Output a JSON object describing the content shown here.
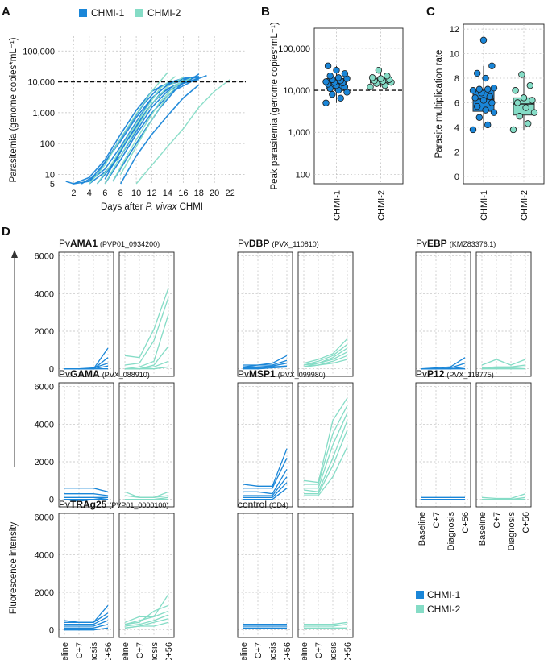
{
  "colors": {
    "chmi1": "#1a86d8",
    "chmi2": "#85dcc6",
    "dashed": "#111111"
  },
  "chart_data": [
    {
      "panel": "A",
      "type": "line",
      "panel_letter": "A",
      "xlabel_prefix": "Days after ",
      "xlabel_italic": "P. vivax",
      "xlabel_suffix": " CHMI",
      "ylabel": "Parasitemia (genome copies*mL⁻¹)",
      "xticks": [
        "2",
        "4",
        "6",
        "8",
        "10",
        "12",
        "14",
        "16",
        "18",
        "20",
        "22"
      ],
      "yticks": [
        "5",
        "10",
        "100",
        "1,000",
        "10,000",
        "100,000"
      ],
      "y_scale": "log",
      "ylim": [
        5,
        300000
      ],
      "xlim": [
        0,
        24
      ],
      "threshold": 10000,
      "legend": [
        "CHMI-1",
        "CHMI-2"
      ],
      "legend_position": "top",
      "series": [
        {
          "group": "CHMI-1",
          "x": [
            1,
            2,
            4,
            6,
            8,
            10,
            12,
            14,
            16,
            18
          ],
          "y": [
            6,
            5,
            8,
            30,
            200,
            1200,
            5000,
            9000,
            13000,
            15000
          ]
        },
        {
          "group": "CHMI-1",
          "x": [
            2,
            4,
            6,
            8,
            10,
            12,
            14,
            16,
            18
          ],
          "y": [
            5,
            6,
            15,
            80,
            500,
            3000,
            8000,
            12000,
            14000
          ]
        },
        {
          "group": "CHMI-1",
          "x": [
            3,
            5,
            7,
            9,
            11,
            13,
            15,
            17
          ],
          "y": [
            5,
            10,
            60,
            350,
            2000,
            7000,
            11000,
            12000
          ]
        },
        {
          "group": "CHMI-1",
          "x": [
            4,
            6,
            8,
            10,
            12,
            14,
            16,
            18,
            19
          ],
          "y": [
            5,
            12,
            40,
            250,
            1500,
            5000,
            9000,
            13000,
            16000
          ]
        },
        {
          "group": "CHMI-1",
          "x": [
            5,
            7,
            9,
            11,
            13,
            15,
            17,
            18
          ],
          "y": [
            5,
            20,
            150,
            900,
            4000,
            8000,
            12000,
            18000
          ]
        },
        {
          "group": "CHMI-1",
          "x": [
            6,
            8,
            10,
            12,
            14,
            16,
            18
          ],
          "y": [
            5,
            30,
            200,
            1000,
            3500,
            9000,
            12000
          ]
        },
        {
          "group": "CHMI-1",
          "x": [
            4,
            6,
            8,
            10,
            12,
            14,
            16
          ],
          "y": [
            6,
            25,
            120,
            700,
            3000,
            8000,
            11000
          ]
        },
        {
          "group": "CHMI-1",
          "x": [
            7,
            9,
            11,
            13,
            15,
            17,
            18
          ],
          "y": [
            6,
            40,
            250,
            1400,
            5500,
            10000,
            14000
          ]
        },
        {
          "group": "CHMI-1",
          "x": [
            8,
            10,
            12,
            14,
            16,
            18
          ],
          "y": [
            5,
            40,
            200,
            800,
            3000,
            8000
          ]
        },
        {
          "group": "CHMI-1",
          "x": [
            6,
            8,
            10,
            12,
            14,
            16,
            17
          ],
          "y": [
            7,
            60,
            350,
            2000,
            6000,
            10000,
            12000
          ]
        },
        {
          "group": "CHMI-2",
          "x": [
            4,
            6,
            8,
            10,
            12,
            14
          ],
          "y": [
            5,
            20,
            150,
            900,
            5000,
            20000
          ]
        },
        {
          "group": "CHMI-2",
          "x": [
            5,
            7,
            9,
            11,
            13,
            15
          ],
          "y": [
            5,
            25,
            180,
            1100,
            6000,
            15000
          ]
        },
        {
          "group": "CHMI-2",
          "x": [
            6,
            8,
            10,
            12,
            14,
            16
          ],
          "y": [
            5,
            40,
            300,
            2000,
            7000,
            14000
          ]
        },
        {
          "group": "CHMI-2",
          "x": [
            7,
            9,
            11,
            13,
            15,
            17
          ],
          "y": [
            6,
            50,
            350,
            2200,
            8000,
            13000
          ]
        },
        {
          "group": "CHMI-2",
          "x": [
            10,
            12,
            14,
            16,
            18,
            20,
            22
          ],
          "y": [
            5,
            20,
            80,
            300,
            1500,
            5000,
            12000
          ]
        },
        {
          "group": "CHMI-2",
          "x": [
            8,
            10,
            12,
            14,
            16
          ],
          "y": [
            10,
            80,
            600,
            3500,
            12000
          ]
        }
      ]
    },
    {
      "panel": "B",
      "type": "box",
      "panel_letter": "B",
      "ylabel": "Peak parasitemia (genome copies*mL⁻¹)",
      "categories": [
        "CHMI-1",
        "CHMI-2"
      ],
      "yticks": [
        "100",
        "1,000",
        "10,000",
        "100,000"
      ],
      "y_scale": "log",
      "ylim": [
        60,
        300000
      ],
      "threshold": 10000,
      "boxes": [
        {
          "min": 5000,
          "q1": 11000,
          "median": 15000,
          "q3": 19000,
          "max": 38000
        },
        {
          "min": 12000,
          "q1": 15000,
          "median": 17000,
          "q3": 19500,
          "max": 30000
        }
      ],
      "points": [
        [
          5000,
          6500,
          8000,
          9000,
          10000,
          11000,
          12000,
          13000,
          14000,
          15000,
          15500,
          16000,
          17000,
          18000,
          19000,
          20000,
          22000,
          25000,
          30000,
          38000
        ],
        [
          12000,
          13000,
          14500,
          15500,
          16500,
          17000,
          18000,
          19000,
          20000,
          22000,
          30000
        ]
      ]
    },
    {
      "panel": "C",
      "type": "box",
      "panel_letter": "C",
      "ylabel": "Parasite multiplication rate",
      "categories": [
        "CHMI-1",
        "CHMI-2"
      ],
      "yticks": [
        "0",
        "2",
        "4",
        "6",
        "8",
        "10",
        "12"
      ],
      "ylim": [
        -0.6,
        12.4
      ],
      "boxes": [
        {
          "min": 3.8,
          "q1": 5.3,
          "median": 6.3,
          "q3": 7.1,
          "max": 9.0
        },
        {
          "min": 3.8,
          "q1": 5.0,
          "median": 5.9,
          "q3": 6.4,
          "max": 8.3
        }
      ],
      "points": [
        [
          3.8,
          4.2,
          4.8,
          5.2,
          5.4,
          5.7,
          6.0,
          6.2,
          6.4,
          6.5,
          6.8,
          7.0,
          7.1,
          7.1,
          7.2,
          8.0,
          8.4,
          9.0,
          11.1
        ],
        [
          3.8,
          4.3,
          4.9,
          5.2,
          5.6,
          6.0,
          6.2,
          6.4,
          7.0,
          7.4,
          8.3
        ]
      ]
    },
    {
      "panel": "D",
      "type": "line",
      "panel_letter": "D",
      "ylabel": "Fluorescence intensity",
      "categories": [
        "Baseline",
        "C+7",
        "Diagnosis",
        "C+56"
      ],
      "yticks": [
        "0",
        "2000",
        "4000",
        "6000"
      ],
      "ylim": [
        -400,
        6200
      ],
      "legend": [
        "CHMI-1",
        "CHMI-2"
      ],
      "legend_position": "bottom-right",
      "antigens": [
        {
          "prefix": "Pv",
          "name": "AMA1",
          "id": "(PVP01_0934200)",
          "chmi1": [
            [
              0,
              0,
              0,
              1100
            ],
            [
              0,
              0,
              0,
              600
            ],
            [
              0,
              0,
              50,
              300
            ],
            [
              0,
              0,
              0,
              150
            ],
            [
              0,
              0,
              0,
              0
            ]
          ],
          "chmi2": [
            [
              700,
              600,
              2100,
              4300
            ],
            [
              200,
              300,
              1500,
              3800
            ],
            [
              0,
              100,
              400,
              2900
            ],
            [
              0,
              0,
              200,
              1200
            ],
            [
              0,
              0,
              100,
              400
            ],
            [
              0,
              0,
              0,
              100
            ]
          ]
        },
        {
          "prefix": "Pv",
          "name": "DBP",
          "id": "(PVX_110810)",
          "chmi1": [
            [
              200,
              200,
              300,
              700
            ],
            [
              100,
              200,
              200,
              450
            ],
            [
              100,
              100,
              150,
              300
            ],
            [
              50,
              50,
              100,
              150
            ],
            [
              0,
              0,
              50,
              100
            ]
          ],
          "chmi2": [
            [
              300,
              500,
              800,
              1600
            ],
            [
              200,
              400,
              700,
              1300
            ],
            [
              200,
              300,
              600,
              1100
            ],
            [
              100,
              300,
              500,
              900
            ],
            [
              100,
              200,
              400,
              700
            ],
            [
              100,
              200,
              300,
              500
            ]
          ]
        },
        {
          "prefix": "Pv",
          "name": "EBP",
          "id": "(KMZ83376.1)",
          "chmi1": [
            [
              0,
              50,
              100,
              600
            ],
            [
              0,
              0,
              50,
              300
            ],
            [
              0,
              0,
              0,
              100
            ],
            [
              0,
              0,
              0,
              0
            ]
          ],
          "chmi2": [
            [
              200,
              500,
              200,
              500
            ],
            [
              50,
              100,
              100,
              200
            ],
            [
              0,
              50,
              50,
              100
            ],
            [
              0,
              0,
              0,
              0
            ]
          ]
        },
        {
          "prefix": "Pv",
          "name": "GAMA",
          "id": "(PVX_088910)",
          "chmi1": [
            [
              600,
              600,
              600,
              400
            ],
            [
              300,
              300,
              300,
              200
            ],
            [
              100,
              100,
              100,
              100
            ],
            [
              0,
              -100,
              0,
              100
            ],
            [
              0,
              0,
              0,
              0
            ]
          ],
          "chmi2": [
            [
              400,
              100,
              100,
              400
            ],
            [
              200,
              100,
              100,
              200
            ],
            [
              0,
              0,
              0,
              100
            ],
            [
              0,
              0,
              0,
              0
            ]
          ]
        },
        {
          "prefix": "Pv",
          "name": "MSP1",
          "id": "(PVX_099980)",
          "chmi1": [
            [
              800,
              700,
              700,
              2700
            ],
            [
              600,
              600,
              600,
              2200
            ],
            [
              400,
              400,
              300,
              1600
            ],
            [
              200,
              200,
              200,
              1200
            ],
            [
              100,
              100,
              100,
              900
            ],
            [
              0,
              0,
              0,
              600
            ]
          ],
          "chmi2": [
            [
              1000,
              900,
              4200,
              5400
            ],
            [
              800,
              800,
              3500,
              5000
            ],
            [
              600,
              600,
              2900,
              4600
            ],
            [
              500,
              400,
              2200,
              4200
            ],
            [
              300,
              300,
              1800,
              3700
            ],
            [
              200,
              200,
              1200,
              2800
            ]
          ]
        },
        {
          "prefix": "Pv",
          "name": "P12",
          "id": "(PVX_113775)",
          "chmi1": [
            [
              100,
              100,
              100,
              100
            ],
            [
              0,
              0,
              0,
              0
            ]
          ],
          "chmi2": [
            [
              100,
              50,
              50,
              300
            ],
            [
              0,
              0,
              0,
              100
            ],
            [
              0,
              0,
              0,
              0
            ]
          ]
        },
        {
          "prefix": "Pv",
          "name": "TRAg25",
          "id": "(PVP01_0000100)",
          "chmi1": [
            [
              500,
              400,
              400,
              1300
            ],
            [
              400,
              400,
              400,
              900
            ],
            [
              300,
              300,
              300,
              700
            ],
            [
              200,
              200,
              200,
              500
            ],
            [
              100,
              100,
              100,
              300
            ],
            [
              0,
              0,
              0,
              100
            ]
          ],
          "chmi2": [
            [
              300,
              500,
              700,
              1900
            ],
            [
              300,
              400,
              1000,
              1300
            ],
            [
              400,
              700,
              700,
              1000
            ],
            [
              200,
              300,
              500,
              800
            ],
            [
              100,
              200,
              400,
              600
            ],
            [
              100,
              200,
              200,
              400
            ]
          ]
        },
        {
          "prefix": "",
          "name": "control",
          "id": "(CD4)",
          "chmi1": [
            [
              300,
              300,
              300,
              300
            ],
            [
              200,
              200,
              200,
              200
            ],
            [
              100,
              100,
              100,
              100
            ]
          ],
          "chmi2": [
            [
              300,
              300,
              300,
              400
            ],
            [
              200,
              200,
              200,
              300
            ],
            [
              100,
              100,
              100,
              100
            ]
          ]
        }
      ]
    }
  ]
}
